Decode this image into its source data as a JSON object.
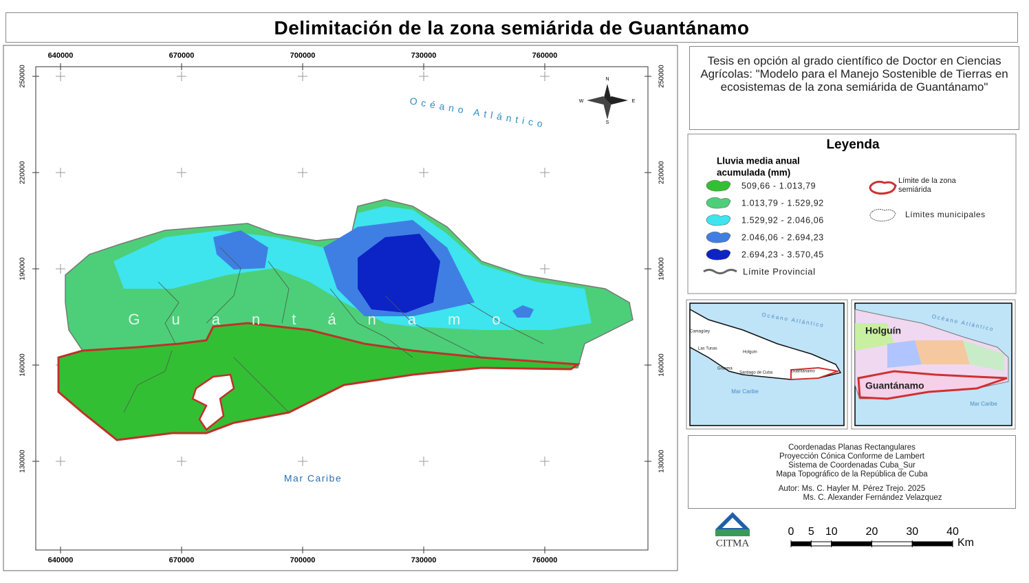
{
  "title": "Delimitación de la zona semiárida de Guantánamo",
  "map": {
    "x_labels": [
      640000,
      670000,
      700000,
      730000,
      760000
    ],
    "y_labels": [
      250000,
      220000,
      190000,
      160000,
      130000
    ],
    "ocean_label": "Océano Atlántico",
    "sea_label": "Mar Caribe",
    "province_label": "Guantánamo",
    "compass": [
      "N",
      "E",
      "S",
      "W"
    ]
  },
  "thesis": "Tesis en opción al grado científico de Doctor en Ciencias  Agrícolas: \"Modelo para el Manejo Sostenible de Tierras en ecosistemas de la zona semiárida de Guantánamo\"",
  "legend": {
    "title": "Leyenda",
    "subtitle": [
      "Lluvia media anual",
      "acumulada (mm)"
    ],
    "classes": [
      {
        "label": "509,66 - 1.013,79",
        "color": "#33bf33"
      },
      {
        "label": "1.013,79 - 1.529,92",
        "color": "#4ccf78"
      },
      {
        "label": "1.529,92 - 2.046,06",
        "color": "#3ee4ee"
      },
      {
        "label": "2.046,06 - 2.694,23",
        "color": "#3f7fe3"
      },
      {
        "label": "2.694,23 - 3.570,45",
        "color": "#0c23c6"
      }
    ],
    "semiarid": "Límite de la zona semiárida",
    "municipal": "Límites municipales",
    "provincial": "Límite Provincial"
  },
  "inset1": {
    "labels": [
      "Océano Atlántico",
      "Camagüey",
      "Las Tunas",
      "Holguín",
      "Granma",
      "Santiago de Cuba",
      "Guantánamo",
      "Mar Caribe"
    ]
  },
  "inset2": {
    "labels": [
      "Holguín",
      "Guantánamo",
      "Océano Atlántico",
      "Mar Caribe"
    ]
  },
  "credits": [
    "Coordenadas Planas Rectangulares",
    "Proyección Cónica Conforme de Lambert",
    "Sistema de Coordenadas Cuba_Sur",
    "Mapa Topográfico de la República de Cuba",
    "Autor: Ms. C. Hayler M. Pérez Trejo. 2025",
    "Ms. C. Alexander Fernández Velazquez"
  ],
  "logo": "CITMA",
  "scale": {
    "ticks": [
      0,
      5,
      10,
      20,
      30,
      40
    ],
    "unit": "Km"
  }
}
